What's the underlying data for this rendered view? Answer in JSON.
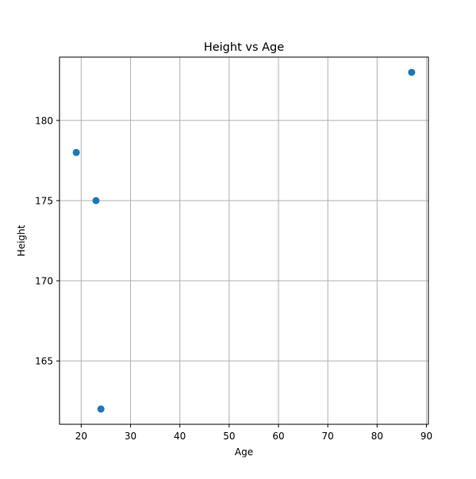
{
  "chart_data": {
    "type": "scatter",
    "title": "Height vs Age",
    "xlabel": "Age",
    "ylabel": "Height",
    "xlim": [
      15.6,
      90.4
    ],
    "ylim": [
      161.05,
      183.95
    ],
    "xticks": [
      20,
      30,
      40,
      50,
      60,
      70,
      80,
      90
    ],
    "yticks": [
      165,
      170,
      175,
      180
    ],
    "grid": true,
    "marker_color": "#1f77b4",
    "points": [
      {
        "x": 19,
        "y": 178
      },
      {
        "x": 23,
        "y": 175
      },
      {
        "x": 24,
        "y": 162
      },
      {
        "x": 87,
        "y": 183
      }
    ]
  }
}
